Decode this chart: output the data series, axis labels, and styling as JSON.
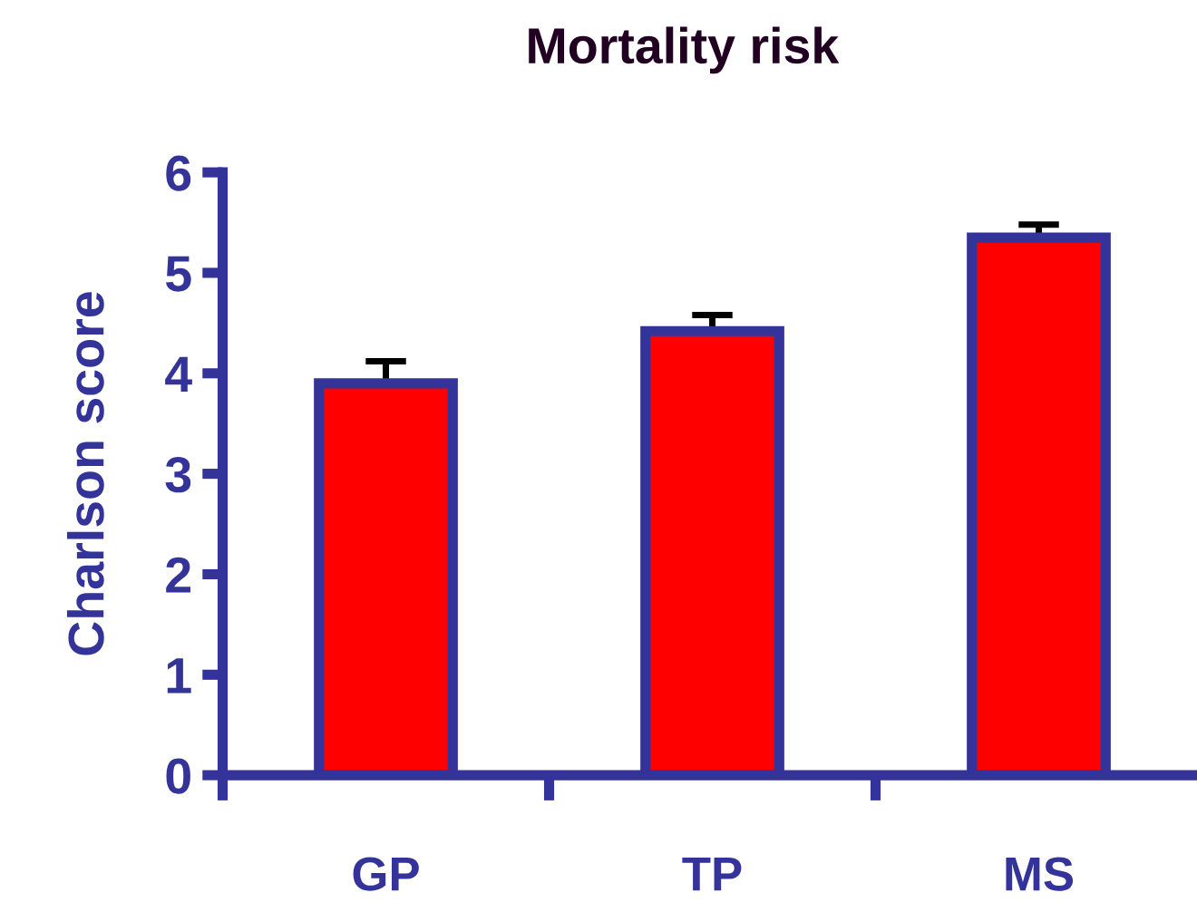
{
  "chart_data": {
    "type": "bar",
    "title": "Mortality risk",
    "ylabel": "Charlson score",
    "categories": [
      "GP",
      "TP",
      "MS"
    ],
    "values": [
      3.9,
      4.42,
      5.35
    ],
    "errors": [
      0.22,
      0.16,
      0.13
    ],
    "color": "#ff0000",
    "ylim": [
      0,
      6
    ],
    "yticks": [
      0,
      1,
      2,
      3,
      4,
      5,
      6
    ],
    "grid": false
  }
}
